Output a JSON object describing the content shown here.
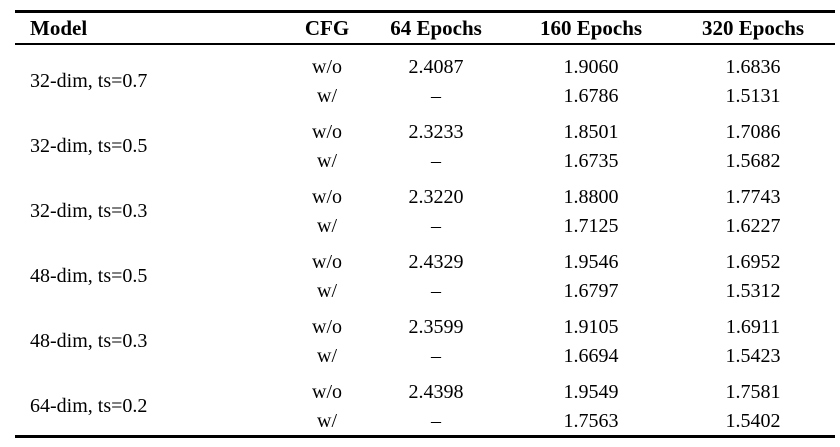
{
  "table": {
    "columns": {
      "model": "Model",
      "cfg": "CFG",
      "e64": "64 Epochs",
      "e160": "160 Epochs",
      "e320": "320 Epochs"
    },
    "text_color": "#000000",
    "background_color": "#ffffff",
    "groups": [
      {
        "model": "32-dim, ts=0.7",
        "rows": [
          {
            "cfg": "w/o",
            "e64": "2.4087",
            "e160": "1.9060",
            "e320": "1.6836"
          },
          {
            "cfg": "w/",
            "e64": "–",
            "e160": "1.6786",
            "e320": "1.5131"
          }
        ]
      },
      {
        "model": "32-dim, ts=0.5",
        "rows": [
          {
            "cfg": "w/o",
            "e64": "2.3233",
            "e160": "1.8501",
            "e320": "1.7086"
          },
          {
            "cfg": "w/",
            "e64": "–",
            "e160": "1.6735",
            "e320": "1.5682"
          }
        ]
      },
      {
        "model": "32-dim, ts=0.3",
        "rows": [
          {
            "cfg": "w/o",
            "e64": "2.3220",
            "e160": "1.8800",
            "e320": "1.7743"
          },
          {
            "cfg": "w/",
            "e64": "–",
            "e160": "1.7125",
            "e320": "1.6227"
          }
        ]
      },
      {
        "model": "48-dim, ts=0.5",
        "rows": [
          {
            "cfg": "w/o",
            "e64": "2.4329",
            "e160": "1.9546",
            "e320": "1.6952"
          },
          {
            "cfg": "w/",
            "e64": "–",
            "e160": "1.6797",
            "e320": "1.5312"
          }
        ]
      },
      {
        "model": "48-dim, ts=0.3",
        "rows": [
          {
            "cfg": "w/o",
            "e64": "2.3599",
            "e160": "1.9105",
            "e320": "1.6911"
          },
          {
            "cfg": "w/",
            "e64": "–",
            "e160": "1.6694",
            "e320": "1.5423"
          }
        ]
      },
      {
        "model": "64-dim, ts=0.2",
        "rows": [
          {
            "cfg": "w/o",
            "e64": "2.4398",
            "e160": "1.9549",
            "e320": "1.7581"
          },
          {
            "cfg": "w/",
            "e64": "–",
            "e160": "1.7563",
            "e320": "1.5402"
          }
        ]
      }
    ]
  }
}
